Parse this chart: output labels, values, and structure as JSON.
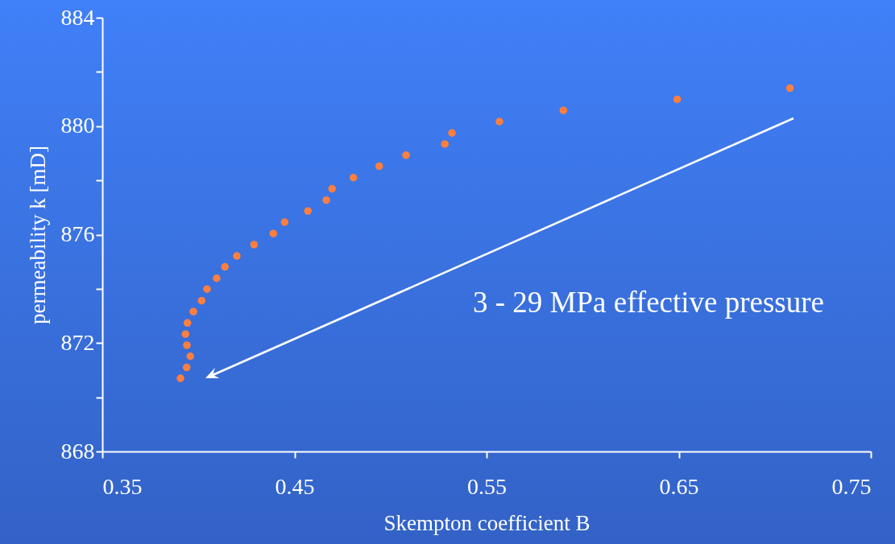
{
  "chart_data": {
    "type": "scatter",
    "xlabel": "Skempton coefficient B",
    "ylabel": "permeability k [mD]",
    "annotations": [
      "3 - 29 MPa effective pressure"
    ],
    "x": [
      0.3907,
      0.3939,
      0.3958,
      0.394,
      0.3933,
      0.3943,
      0.3974,
      0.4017,
      0.4045,
      0.4095,
      0.4138,
      0.42,
      0.429,
      0.439,
      0.4449,
      0.457,
      0.4666,
      0.4696,
      0.4807,
      0.4941,
      0.5081,
      0.5283,
      0.532,
      0.5567,
      0.59,
      0.6492,
      0.7079
    ],
    "series": [
      {
        "color": "#fd7f3f",
        "values": [
          870.7,
          871.1,
          871.51,
          871.92,
          872.33,
          872.74,
          873.16,
          873.56,
          873.99,
          874.39,
          874.81,
          875.21,
          875.63,
          876.04,
          876.46,
          876.87,
          877.27,
          877.69,
          878.1,
          878.52,
          878.93,
          879.34,
          879.75,
          880.17,
          880.58,
          880.99,
          881.4
        ]
      }
    ],
    "xlim": [
      0.35,
      0.75
    ],
    "xticks": [
      0.35,
      0.45,
      0.55,
      0.65,
      0.75
    ],
    "ylim": [
      868,
      884
    ],
    "yticks": [
      868,
      {
        "value": 870,
        "label": null
      },
      872,
      {
        "value": 874,
        "label": null
      },
      876,
      {
        "value": 878,
        "label": null
      },
      880,
      {
        "value": 882,
        "label": null
      },
      884
    ],
    "marker": "circle",
    "grid": false
  }
}
